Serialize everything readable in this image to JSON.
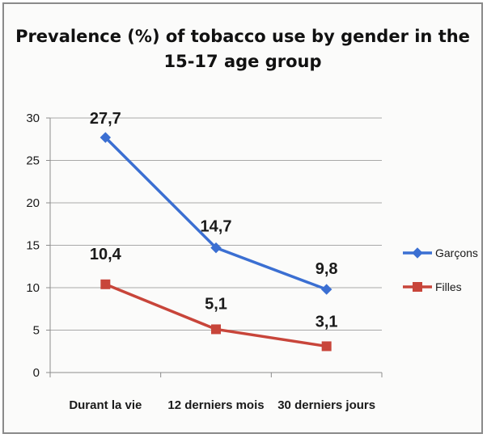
{
  "chart_data": {
    "type": "line",
    "title_lines": [
      "Prevalence (%) of tobacco use by gender in the",
      "15-17 age group"
    ],
    "categories": [
      "Durant la vie",
      "12 derniers mois",
      "30 derniers jours"
    ],
    "ylim": [
      0,
      30
    ],
    "yticks": [
      "0",
      "5",
      "10",
      "15",
      "20",
      "25",
      "30"
    ],
    "grid": true,
    "legend_position": "right",
    "series": [
      {
        "name": "Garçons",
        "values": [
          27.7,
          14.7,
          9.8
        ],
        "labels": [
          "27,7",
          "14,7",
          "9,8"
        ],
        "color": "#3b6fd2",
        "marker": "diamond"
      },
      {
        "name": "Filles",
        "values": [
          10.4,
          5.1,
          3.1
        ],
        "labels": [
          "10,4",
          "5,1",
          "3,1"
        ],
        "color": "#c8453a",
        "marker": "square"
      }
    ]
  }
}
